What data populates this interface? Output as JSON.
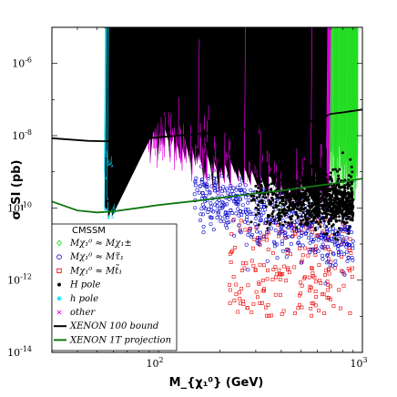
{
  "chart_data": {
    "type": "scatter",
    "title": "",
    "xlabel": "M_{χ₁⁰} (GeV)",
    "ylabel": "σ_SI (pb)",
    "xscale": "log",
    "yscale": "log",
    "xlim": [
      30,
      1000
    ],
    "ylim": [
      1e-14,
      1e-05
    ],
    "x_ticks": [
      {
        "value": 100,
        "label": "10",
        "exp": "2"
      },
      {
        "value": 1000,
        "label": "10",
        "exp": "3"
      }
    ],
    "y_ticks": [
      {
        "value": 1e-06,
        "label": "10",
        "exp": "-6"
      },
      {
        "value": 1e-08,
        "label": "10",
        "exp": "-8"
      },
      {
        "value": 1e-10,
        "label": "10",
        "exp": "-10"
      },
      {
        "value": 1e-12,
        "label": "10",
        "exp": "-12"
      },
      {
        "value": 1e-14,
        "label": "10",
        "exp": "-14"
      }
    ],
    "legend": {
      "placement": "bottom-left",
      "title": "CMSSM",
      "entries": [
        {
          "key": "chargino",
          "label": "Mχ₁⁰ ≈ Mχ₁±",
          "marker": "diamond",
          "color": "#22dd22"
        },
        {
          "key": "stau",
          "label": "Mχ₁⁰ ≈ Mτ̃₁",
          "marker": "circle",
          "color": "#0000cc"
        },
        {
          "key": "stop",
          "label": "Mχ₁⁰ ≈ Mt̃₁",
          "marker": "square",
          "color": "#ee0000"
        },
        {
          "key": "Hpole",
          "label": "H pole",
          "marker": "filled-circle",
          "color": "#000000"
        },
        {
          "key": "hpole",
          "label": "h pole",
          "marker": "star",
          "color": "#00e0ff"
        },
        {
          "key": "other",
          "label": "other",
          "marker": "x",
          "color": "#ee00ee"
        },
        {
          "key": "xenon100",
          "label": "XENON 100 bound",
          "marker": "line",
          "color": "#000000"
        },
        {
          "key": "xenon1t",
          "label": "XENON 1T projection",
          "marker": "line",
          "color": "#117711"
        }
      ]
    },
    "series": [
      {
        "key": "xenon100",
        "kind": "line",
        "color": "#000000",
        "points": [
          [
            30,
            8.5e-09
          ],
          [
            45,
            7.2e-09
          ],
          [
            55,
            7e-09
          ],
          [
            70,
            7.6e-09
          ],
          [
            100,
            9e-09
          ],
          [
            150,
            1.1e-08
          ],
          [
            200,
            1.25e-08
          ],
          [
            300,
            1.6e-08
          ],
          [
            400,
            1.85e-08
          ],
          [
            500,
            2.2e-08
          ],
          [
            600,
            2.7e-08
          ],
          [
            700,
            4e-08
          ],
          [
            800,
            4.4e-08
          ],
          [
            1000,
            5.3e-08
          ]
        ]
      },
      {
        "key": "xenon1t",
        "kind": "line",
        "color": "#117711",
        "points": [
          [
            30,
            1.5e-10
          ],
          [
            40,
            8.5e-11
          ],
          [
            50,
            7.5e-11
          ],
          [
            60,
            8e-11
          ],
          [
            80,
            1e-10
          ],
          [
            100,
            1.2e-10
          ],
          [
            150,
            1.55e-10
          ],
          [
            200,
            1.9e-10
          ],
          [
            300,
            2.5e-10
          ],
          [
            400,
            3e-10
          ],
          [
            500,
            3.6e-10
          ],
          [
            700,
            4.6e-10
          ],
          [
            1000,
            6.5e-10
          ]
        ]
      },
      {
        "key": "chargino",
        "kind": "scatter",
        "marker": "diamond",
        "color": "#22dd22",
        "region": {
          "x": [
            180,
            950
          ],
          "y_center_low": [
            6e-09,
            1e-09
          ],
          "y_center_high": [
            3e-08,
            8e-10
          ],
          "spread_decades": 1.2
        },
        "count": 900
      },
      {
        "key": "stau",
        "kind": "scatter",
        "marker": "circle",
        "color": "#0000cc",
        "region": {
          "x": [
            150,
            900
          ],
          "y_center": [
            3e-10,
            1e-11
          ],
          "spread_decades": 0.9
        },
        "count": 500
      },
      {
        "key": "stop",
        "kind": "scatter",
        "marker": "square",
        "color": "#ee0000",
        "region": {
          "x": [
            220,
            900
          ],
          "y": [
            1e-13,
            5e-11
          ]
        },
        "count": 220
      },
      {
        "key": "Hpole",
        "kind": "scatter",
        "marker": "filled-circle",
        "color": "#000000",
        "region": {
          "x": [
            280,
            900
          ],
          "y_center": [
            2e-10,
            1.5e-10
          ],
          "spread_decades": 0.7
        },
        "count": 1000
      },
      {
        "key": "hpole",
        "kind": "scatter",
        "marker": "star",
        "color": "#00e0ff",
        "region": {
          "x": [
            55,
            62
          ],
          "y": [
            5e-11,
            6e-09
          ]
        },
        "count": 90
      },
      {
        "key": "other",
        "kind": "scatter",
        "marker": "x",
        "color": "#ee00ee",
        "region": {
          "x": [
            90,
            700
          ],
          "y_center": [
            1.5e-08,
            1e-09
          ],
          "spread_decades": 0.9
        },
        "count": 800
      }
    ]
  }
}
